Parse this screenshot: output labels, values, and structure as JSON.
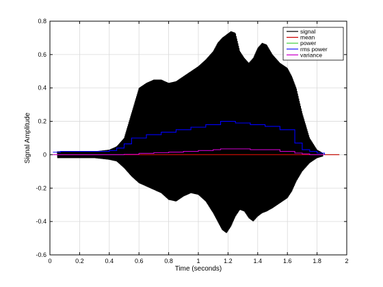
{
  "chart_data": {
    "type": "line",
    "xlabel": "Time (seconds)",
    "ylabel": "Signal Amplitude",
    "xlim": [
      0,
      2
    ],
    "ylim": [
      -0.6,
      0.8
    ],
    "xticks": [
      "0",
      "0.2",
      "0.4",
      "0.6",
      "0.8",
      "1",
      "1.2",
      "1.4",
      "1.6",
      "1.8",
      "2"
    ],
    "yticks": [
      "-0.6",
      "-0.4",
      "-0.2",
      "0",
      "0.2",
      "0.4",
      "0.6",
      "0.8"
    ],
    "grid": true,
    "legend_position": "top-right",
    "legend": [
      "signal",
      "mean",
      "power",
      "rms power",
      "variance"
    ],
    "colors": {
      "signal": "#000000",
      "mean": "#cc0000",
      "power": "#33cc33",
      "rms power": "#0000ff",
      "variance": "#cc00cc"
    },
    "signal_envelope": {
      "x": [
        0.05,
        0.1,
        0.2,
        0.3,
        0.4,
        0.45,
        0.5,
        0.55,
        0.6,
        0.65,
        0.7,
        0.75,
        0.8,
        0.85,
        0.9,
        0.95,
        1.0,
        1.05,
        1.1,
        1.13,
        1.16,
        1.19,
        1.22,
        1.25,
        1.28,
        1.31,
        1.34,
        1.37,
        1.4,
        1.43,
        1.46,
        1.5,
        1.55,
        1.6,
        1.63,
        1.66,
        1.7,
        1.75,
        1.8,
        1.84
      ],
      "upper": [
        0.02,
        0.02,
        0.02,
        0.02,
        0.03,
        0.05,
        0.1,
        0.25,
        0.4,
        0.43,
        0.45,
        0.45,
        0.43,
        0.44,
        0.47,
        0.5,
        0.53,
        0.57,
        0.62,
        0.67,
        0.7,
        0.72,
        0.74,
        0.73,
        0.62,
        0.58,
        0.55,
        0.58,
        0.64,
        0.67,
        0.66,
        0.6,
        0.55,
        0.52,
        0.47,
        0.4,
        0.25,
        0.1,
        0.03,
        0.01
      ],
      "lower": [
        -0.02,
        -0.02,
        -0.02,
        -0.02,
        -0.03,
        -0.04,
        -0.08,
        -0.13,
        -0.17,
        -0.19,
        -0.21,
        -0.23,
        -0.27,
        -0.28,
        -0.25,
        -0.23,
        -0.24,
        -0.28,
        -0.35,
        -0.4,
        -0.45,
        -0.47,
        -0.43,
        -0.37,
        -0.33,
        -0.34,
        -0.38,
        -0.4,
        -0.37,
        -0.35,
        -0.34,
        -0.32,
        -0.29,
        -0.26,
        -0.22,
        -0.16,
        -0.1,
        -0.05,
        -0.02,
        -0.01
      ]
    },
    "series": [
      {
        "name": "rms power",
        "step": true,
        "x": [
          0.02,
          0.07,
          0.1,
          0.2,
          0.3,
          0.4,
          0.45,
          0.5,
          0.55,
          0.6,
          0.65,
          0.7,
          0.75,
          0.8,
          0.85,
          0.9,
          0.95,
          1.0,
          1.05,
          1.1,
          1.15,
          1.2,
          1.25,
          1.3,
          1.35,
          1.4,
          1.45,
          1.5,
          1.55,
          1.6,
          1.65,
          1.7,
          1.75,
          1.8,
          1.85
        ],
        "values": [
          0.015,
          0.02,
          0.02,
          0.02,
          0.02,
          0.025,
          0.04,
          0.065,
          0.1,
          0.1,
          0.12,
          0.12,
          0.135,
          0.135,
          0.15,
          0.15,
          0.165,
          0.165,
          0.18,
          0.18,
          0.2,
          0.2,
          0.19,
          0.19,
          0.18,
          0.18,
          0.17,
          0.17,
          0.15,
          0.15,
          0.07,
          0.03,
          0.02,
          0.01,
          0.0
        ]
      },
      {
        "name": "variance",
        "step": true,
        "x": [
          0.02,
          0.5,
          0.6,
          0.7,
          0.8,
          0.9,
          1.0,
          1.1,
          1.15,
          1.25,
          1.35,
          1.45,
          1.55,
          1.65,
          1.7,
          1.75,
          1.85
        ],
        "values": [
          0.0,
          0.002,
          0.008,
          0.012,
          0.016,
          0.02,
          0.025,
          0.03,
          0.035,
          0.035,
          0.03,
          0.03,
          0.02,
          0.01,
          0.005,
          0.0,
          0.0
        ]
      },
      {
        "name": "mean",
        "x": [
          0.02,
          1.95
        ],
        "values": [
          0.0,
          0.0
        ]
      },
      {
        "name": "power",
        "x": [
          0.02,
          1.95
        ],
        "values": [
          0.0,
          0.0
        ]
      }
    ]
  }
}
